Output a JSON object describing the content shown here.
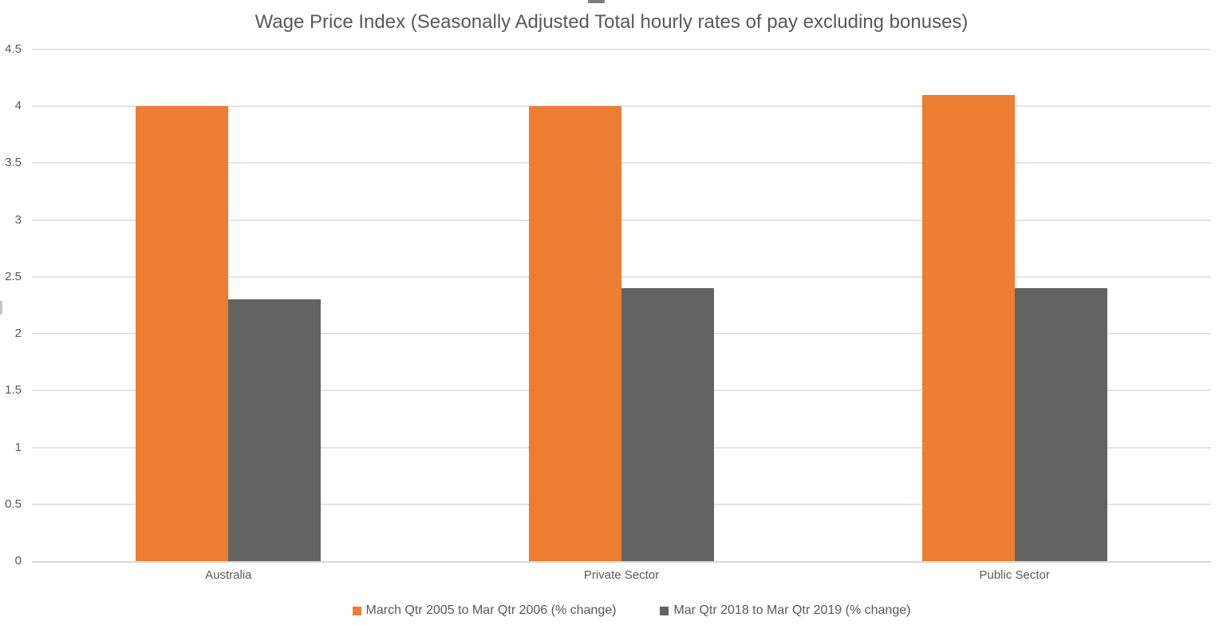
{
  "chart_data": {
    "type": "bar",
    "title": "Wage Price Index (Seasonally Adjusted Total hourly rates of pay excluding bonuses)",
    "categories": [
      "Australia",
      "Private Sector",
      "Public Sector"
    ],
    "series": [
      {
        "name": "March Qtr 2005 to Mar Qtr 2006 (% change)",
        "values": [
          4.0,
          4.0,
          4.1
        ],
        "color": "#ED7D31"
      },
      {
        "name": "Mar Qtr 2018 to Mar Qtr 2019 (% change)",
        "values": [
          2.3,
          2.4,
          2.4
        ],
        "color": "#636363"
      }
    ],
    "xlabel": "",
    "ylabel": "",
    "ylim": [
      0,
      4.5
    ],
    "ytick_step": 0.5,
    "ytick_labels": [
      "0",
      "0.5",
      "1",
      "1.5",
      "2",
      "2.5",
      "3",
      "3.5",
      "4",
      "4.5"
    ],
    "grid": true,
    "legend_position": "bottom"
  },
  "ui": {
    "colors": {
      "background": "#FFFFFF",
      "gridline": "#E5E5E5",
      "axis_line": "#D9D9D9",
      "text": "#595959",
      "title": "#595959"
    }
  }
}
